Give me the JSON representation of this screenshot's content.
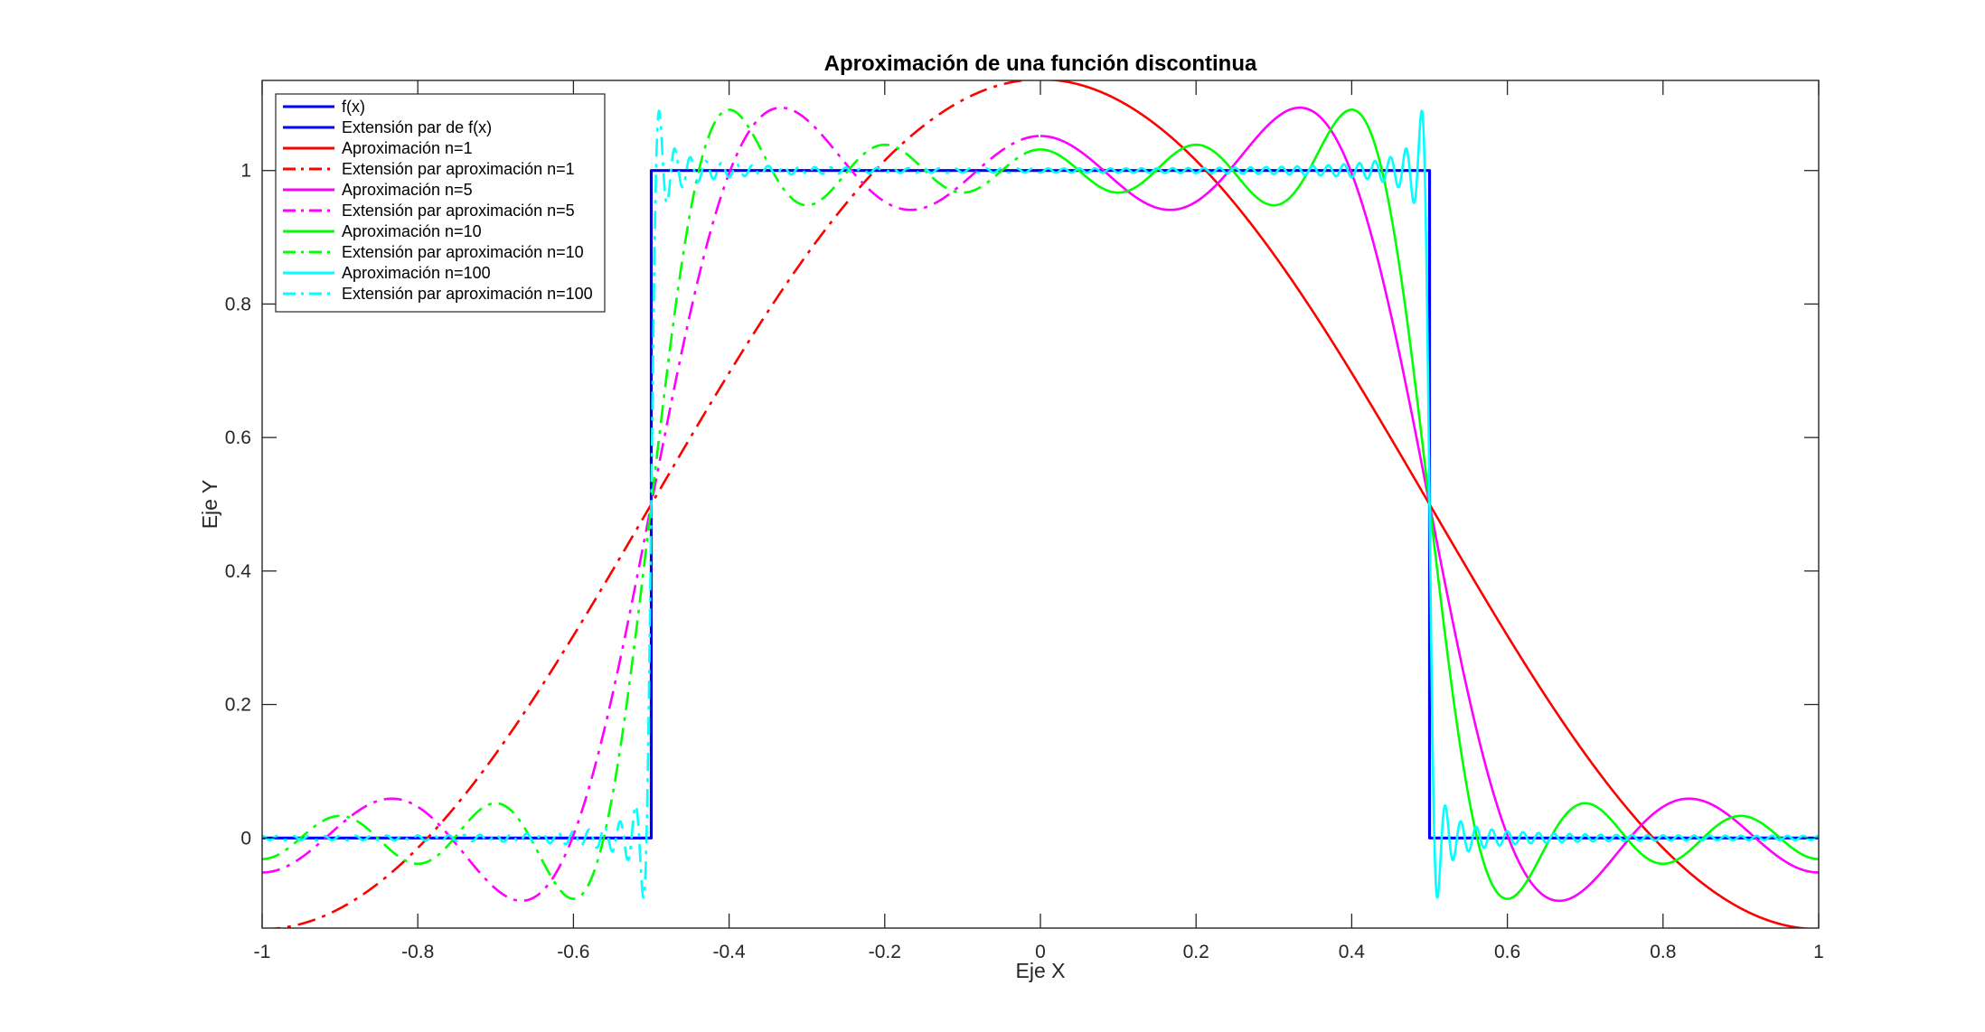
{
  "chart_data": {
    "type": "line",
    "title": "Aproximación de una función discontinua",
    "xlabel": "Eje X",
    "ylabel": "Eje Y",
    "xlim": [
      -1,
      1
    ],
    "ylim": [
      -0.135,
      1.135
    ],
    "grid": false,
    "legend_position": "top-left",
    "x_ticks": [
      "-1",
      "-0.8",
      "-0.6",
      "-0.4",
      "-0.2",
      "0",
      "0.2",
      "0.4",
      "0.6",
      "0.8",
      "1"
    ],
    "y_ticks": [
      "0",
      "0.2",
      "0.4",
      "0.6",
      "0.8",
      "1"
    ],
    "series": [
      {
        "name": "f(x)",
        "kind": "step",
        "color": "#0000FF",
        "style": "solid",
        "segment": "right",
        "x": [
          0,
          0.5,
          0.5,
          1
        ],
        "y": [
          1,
          1,
          0,
          0
        ]
      },
      {
        "name": "Extensión par de f(x)",
        "kind": "step",
        "color": "#0000FF",
        "style": "solid",
        "segment": "left",
        "x": [
          -1,
          -0.5,
          -0.5,
          0
        ],
        "y": [
          0,
          0,
          1,
          1
        ]
      },
      {
        "name": "Aproximación n=1",
        "kind": "fourier",
        "color": "#FF0000",
        "style": "solid",
        "segment": "right",
        "terms": 1
      },
      {
        "name": "Extensión par aproximación n=1",
        "kind": "fourier",
        "color": "#FF0000",
        "style": "dashdot",
        "segment": "left",
        "terms": 1
      },
      {
        "name": "Aproximación n=5",
        "kind": "fourier",
        "color": "#FF00FF",
        "style": "solid",
        "segment": "right",
        "terms": 5
      },
      {
        "name": "Extensión par aproximación n=5",
        "kind": "fourier",
        "color": "#FF00FF",
        "style": "dashdot",
        "segment": "left",
        "terms": 5
      },
      {
        "name": "Aproximación n=10",
        "kind": "fourier",
        "color": "#00FF00",
        "style": "solid",
        "segment": "right",
        "terms": 10
      },
      {
        "name": "Extensión par aproximación n=10",
        "kind": "fourier",
        "color": "#00FF00",
        "style": "dashdot",
        "segment": "left",
        "terms": 10
      },
      {
        "name": "Aproximación n=100",
        "kind": "fourier",
        "color": "#00FFFF",
        "style": "solid",
        "segment": "right",
        "terms": 100
      },
      {
        "name": "Extensión par aproximación n=100",
        "kind": "fourier",
        "color": "#00FFFF",
        "style": "dashdot",
        "segment": "left",
        "terms": 100
      }
    ]
  }
}
